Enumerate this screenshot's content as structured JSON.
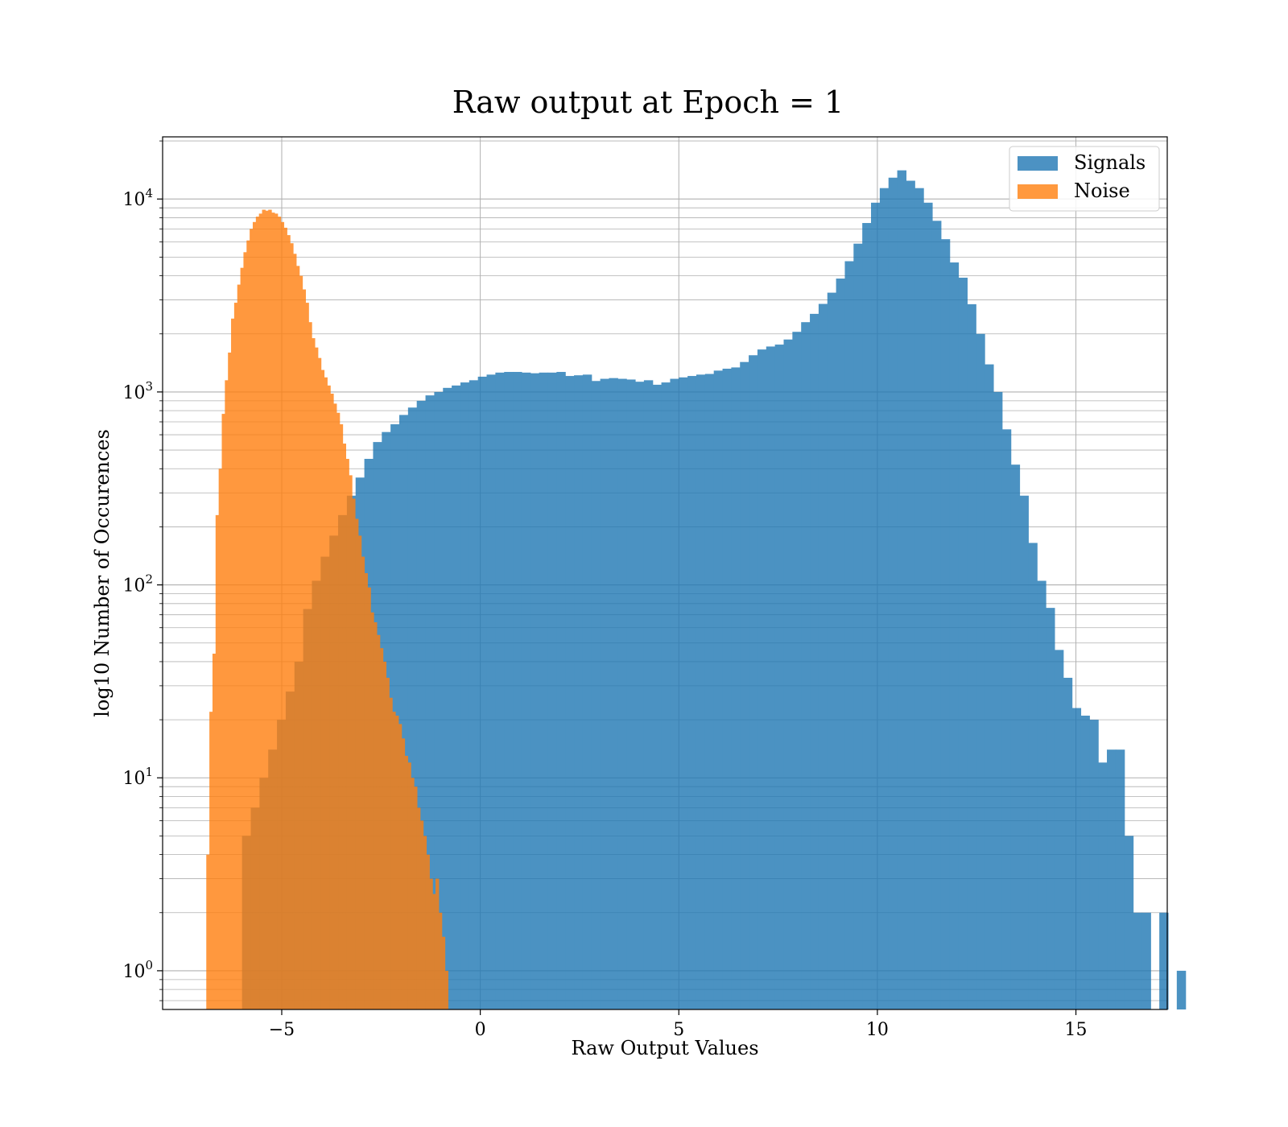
{
  "chart_data": {
    "type": "bar",
    "title": "Raw output at Epoch = 1",
    "xlabel": "Raw Output Values",
    "ylabel": "log10 Number of Occurences",
    "y_scale": "log",
    "xlim": [
      -8,
      17.3
    ],
    "ylim": [
      0.63,
      21000
    ],
    "x_ticks": [
      {
        "value": -5,
        "label": "−5"
      },
      {
        "value": 0,
        "label": "0"
      },
      {
        "value": 5,
        "label": "5"
      },
      {
        "value": 10,
        "label": "10"
      },
      {
        "value": 15,
        "label": "15"
      }
    ],
    "y_ticks": [
      {
        "value": 1,
        "base": "10",
        "exp": "0"
      },
      {
        "value": 10,
        "base": "10",
        "exp": "1"
      },
      {
        "value": 100,
        "base": "10",
        "exp": "2"
      },
      {
        "value": 1000,
        "base": "10",
        "exp": "3"
      },
      {
        "value": 10000,
        "base": "10",
        "exp": "4"
      }
    ],
    "grid": true,
    "legend_position": "top-right",
    "series": [
      {
        "name": "Signals",
        "color": "#1f77b4",
        "alpha": 0.8,
        "bin_start": -6.0,
        "bin_width": 0.22,
        "values": [
          5,
          7,
          10,
          14,
          20,
          28,
          40,
          75,
          105,
          140,
          180,
          230,
          290,
          360,
          450,
          550,
          620,
          680,
          760,
          830,
          900,
          960,
          1000,
          1050,
          1080,
          1120,
          1150,
          1200,
          1230,
          1260,
          1270,
          1270,
          1260,
          1250,
          1260,
          1260,
          1270,
          1210,
          1220,
          1230,
          1140,
          1170,
          1180,
          1170,
          1160,
          1130,
          1150,
          1090,
          1120,
          1170,
          1190,
          1210,
          1230,
          1240,
          1290,
          1320,
          1340,
          1430,
          1550,
          1660,
          1720,
          1760,
          1870,
          2050,
          2300,
          2540,
          2860,
          3270,
          3870,
          4760,
          5870,
          7510,
          9570,
          11390,
          12900,
          14080,
          12440,
          11390,
          9570,
          7710,
          6190,
          4690,
          3910,
          2850,
          2000,
          1390,
          1000,
          640,
          420,
          290,
          165,
          105,
          76,
          46,
          33,
          23,
          21,
          20,
          12,
          14,
          14,
          5,
          2,
          2,
          0,
          2,
          0,
          1
        ]
      },
      {
        "name": "Noise",
        "color": "#ff7f0e",
        "alpha": 0.8,
        "bin_start": -6.9,
        "bin_width": 0.078,
        "values": [
          4,
          22,
          44,
          230,
          400,
          770,
          1150,
          1600,
          2400,
          2900,
          3600,
          4400,
          5300,
          6100,
          7000,
          7600,
          8100,
          8400,
          8800,
          8700,
          8800,
          8500,
          8400,
          8100,
          7600,
          7100,
          6500,
          5900,
          5200,
          4500,
          4000,
          3400,
          2900,
          2300,
          1900,
          1700,
          1500,
          1300,
          1190,
          1080,
          980,
          870,
          780,
          680,
          540,
          450,
          370,
          280,
          220,
          180,
          140,
          115,
          97,
          72,
          64,
          55,
          47,
          40,
          33,
          26,
          22,
          21,
          19,
          16,
          13,
          12,
          10,
          9,
          7,
          6,
          5,
          4,
          3,
          2.5,
          3,
          2,
          1.5,
          1
        ]
      }
    ]
  }
}
